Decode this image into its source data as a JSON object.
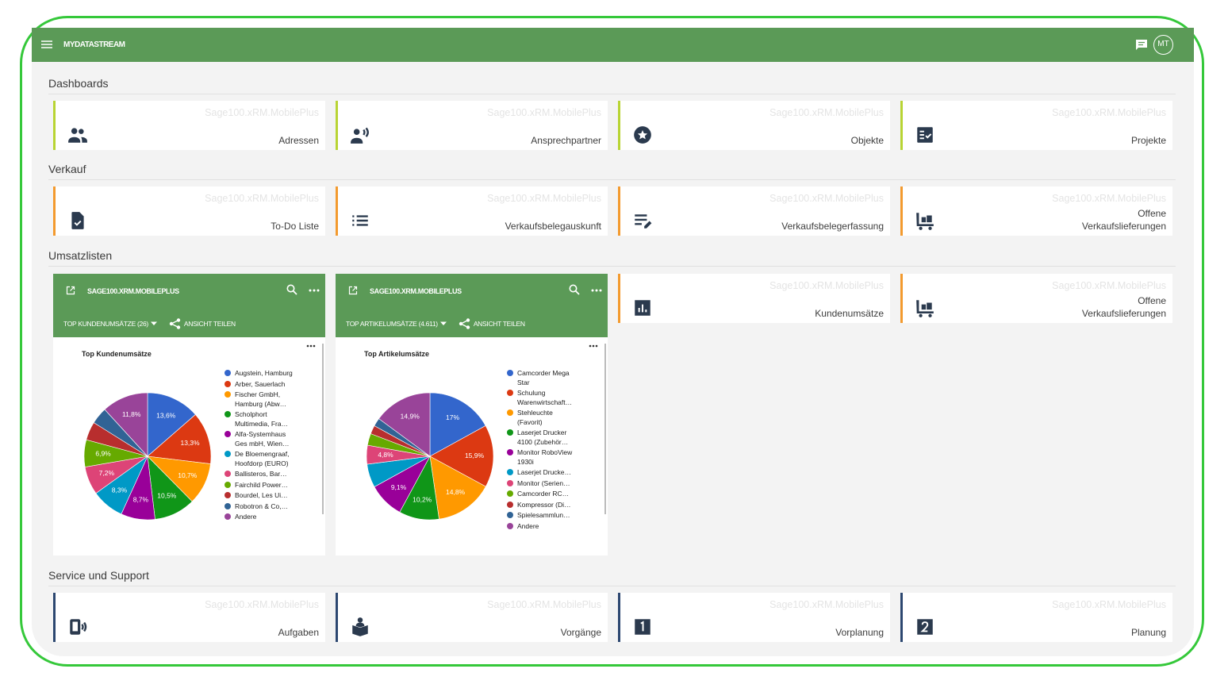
{
  "app": {
    "title": "MYDATASTREAM",
    "avatar": "MT"
  },
  "watermark": "Sage100.xRM.MobilePlus",
  "sections": [
    {
      "title": "Dashboards",
      "tiles": [
        "Adressen",
        "Ansprechpartner",
        "Objekte",
        "Projekte"
      ]
    },
    {
      "title": "Verkauf",
      "tiles": [
        "To-Do Liste",
        "Verkaufsbelegauskunft",
        "Verkaufsbelegerfassung",
        "Offene\nVerkaufslieferungen"
      ]
    },
    {
      "title": "Umsatzlisten",
      "widgets": [
        {
          "source": "SAGE100.XRM.MOBILEPLUS",
          "view": "TOP KUNDENUMSÄTZE (26)",
          "share": "ANSICHT TEILEN"
        },
        {
          "source": "SAGE100.XRM.MOBILEPLUS",
          "view": "TOP ARTIKELUMSÄTZE (4.611)",
          "share": "ANSICHT TEILEN"
        }
      ],
      "tiles": [
        "Kundenumsätze",
        "Offene\nVerkaufslieferungen"
      ]
    },
    {
      "title": "Service und Support",
      "tiles": [
        "Aufgaben",
        "Vorgänge",
        "Vorplanung",
        "Planung"
      ]
    }
  ],
  "chart_data": [
    {
      "type": "pie",
      "title": "Top Kundenumsätze",
      "categories": [
        "Augstein, Hamburg",
        "Arber, Sauerlach",
        "Fischer GmbH, Hamburg (Abw…",
        "Scholphort Multimedia, Fra…",
        "Alfa-Systemhaus Ges mbH, Wien…",
        "De Bloemengraaf, Hoofdorp (EURO)",
        "Ballisteros, Bar…",
        "Fairchild Power…",
        "Bourdel, Les Ui…",
        "Robotron & Co,…",
        "Andere"
      ],
      "values": [
        13.6,
        13.3,
        10.7,
        10.5,
        8.7,
        8.3,
        7.2,
        6.9,
        4.7,
        4.3,
        11.8
      ],
      "value_labels": [
        "13,6%",
        "13,3%",
        "10,7%",
        "10,5%",
        "8,7%",
        "8,3%",
        "7,2%",
        "6,9%",
        null,
        null,
        "11,8%"
      ],
      "colors": [
        "#3366cc",
        "#dc3912",
        "#ff9900",
        "#109618",
        "#990099",
        "#0099c6",
        "#dd4477",
        "#66aa00",
        "#b82e2e",
        "#316395",
        "#994499"
      ]
    },
    {
      "type": "pie",
      "title": "Top Artikelumsätze",
      "categories": [
        "Camcorder Mega Star",
        "Schulung Warenwirtschaft…",
        "Stehleuchte (Favorit)",
        "Laserjet Drucker 4100 (Zubehör…",
        "Monitor RoboView 1930i",
        "Laserjet Drucke…",
        "Monitor (Serien…",
        "Camcorder RC…",
        "Kompressor (Di…",
        "Spielesammlun…",
        "Andere"
      ],
      "values": [
        17,
        15.9,
        14.8,
        10.2,
        9.1,
        6,
        4.8,
        3,
        2.2,
        2.1,
        14.9
      ],
      "value_labels": [
        "17%",
        "15,9%",
        "14,8%",
        "10,2%",
        "9,1%",
        null,
        "4,8%",
        null,
        null,
        null,
        "14,9%"
      ],
      "colors": [
        "#3366cc",
        "#dc3912",
        "#ff9900",
        "#109618",
        "#990099",
        "#0099c6",
        "#dd4477",
        "#66aa00",
        "#b82e2e",
        "#316395",
        "#994499"
      ]
    }
  ]
}
